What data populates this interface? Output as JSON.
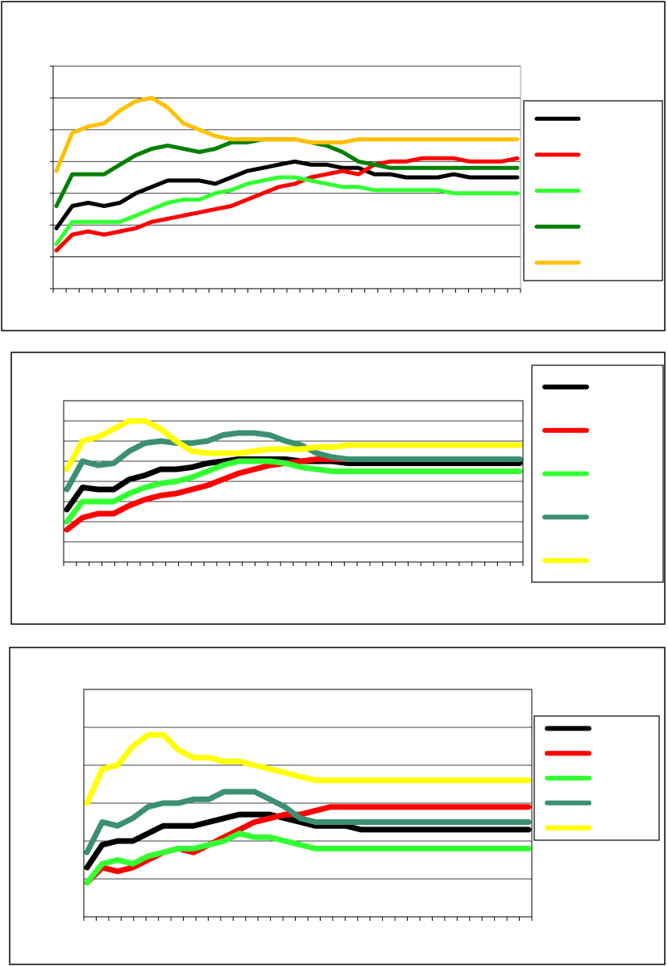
{
  "chart_data": [
    {
      "type": "line",
      "title": "",
      "xlabel": "",
      "ylabel": "",
      "x": [
        0,
        1,
        2,
        3,
        4,
        5,
        6,
        7,
        8,
        9,
        10,
        11,
        12,
        13,
        14,
        15,
        16,
        17,
        18,
        19,
        20,
        21,
        22,
        23,
        24,
        25,
        26,
        27,
        28,
        29
      ],
      "ylim": [
        0,
        7
      ],
      "grid": true,
      "legend": "right",
      "series": [
        {
          "color": "#000000",
          "values": [
            1.9,
            2.6,
            2.7,
            2.6,
            2.7,
            3.0,
            3.2,
            3.4,
            3.4,
            3.4,
            3.3,
            3.5,
            3.7,
            3.8,
            3.9,
            4.0,
            3.9,
            3.9,
            3.8,
            3.8,
            3.6,
            3.6,
            3.5,
            3.5,
            3.5,
            3.6,
            3.5,
            3.5,
            3.5,
            3.5
          ]
        },
        {
          "color": "#ff0000",
          "values": [
            1.2,
            1.7,
            1.8,
            1.7,
            1.8,
            1.9,
            2.1,
            2.2,
            2.3,
            2.4,
            2.5,
            2.6,
            2.8,
            3.0,
            3.2,
            3.3,
            3.5,
            3.6,
            3.7,
            3.6,
            3.9,
            4.0,
            4.0,
            4.1,
            4.1,
            4.1,
            4.0,
            4.0,
            4.0,
            4.1
          ]
        },
        {
          "color": "#33ff33",
          "values": [
            1.4,
            2.1,
            2.1,
            2.1,
            2.1,
            2.3,
            2.5,
            2.7,
            2.8,
            2.8,
            3.0,
            3.1,
            3.3,
            3.4,
            3.5,
            3.5,
            3.4,
            3.3,
            3.2,
            3.2,
            3.1,
            3.1,
            3.1,
            3.1,
            3.1,
            3.0,
            3.0,
            3.0,
            3.0,
            3.0
          ]
        },
        {
          "color": "#008000",
          "values": [
            2.6,
            3.6,
            3.6,
            3.6,
            3.9,
            4.2,
            4.4,
            4.5,
            4.4,
            4.3,
            4.4,
            4.6,
            4.6,
            4.7,
            4.7,
            4.7,
            4.6,
            4.5,
            4.3,
            4.0,
            3.9,
            3.8,
            3.8,
            3.8,
            3.8,
            3.8,
            3.8,
            3.8,
            3.8,
            3.8
          ]
        },
        {
          "color": "#ffc000",
          "values": [
            3.7,
            4.9,
            5.1,
            5.2,
            5.6,
            5.9,
            6.0,
            5.7,
            5.2,
            5.0,
            4.8,
            4.7,
            4.7,
            4.7,
            4.7,
            4.7,
            4.6,
            4.6,
            4.6,
            4.7,
            4.7,
            4.7,
            4.7,
            4.7,
            4.7,
            4.7,
            4.7,
            4.7,
            4.7,
            4.7
          ]
        }
      ]
    },
    {
      "type": "line",
      "title": "",
      "xlabel": "",
      "ylabel": "",
      "x": [
        0,
        1,
        2,
        3,
        4,
        5,
        6,
        7,
        8,
        9,
        10,
        11,
        12,
        13,
        14,
        15,
        16,
        17,
        18,
        19,
        20,
        21,
        22,
        23,
        24,
        25,
        26,
        27,
        28,
        29
      ],
      "ylim": [
        0,
        8
      ],
      "grid": true,
      "legend": "right",
      "series": [
        {
          "color": "#000000",
          "values": [
            2.6,
            3.7,
            3.6,
            3.6,
            4.1,
            4.3,
            4.6,
            4.6,
            4.7,
            4.9,
            5.0,
            5.1,
            5.1,
            5.1,
            5.1,
            5.0,
            5.0,
            5.0,
            4.9,
            4.9,
            4.9,
            4.9,
            4.9,
            4.9,
            4.9,
            4.9,
            4.9,
            4.9,
            4.9,
            4.9
          ]
        },
        {
          "color": "#ff0000",
          "values": [
            1.6,
            2.2,
            2.4,
            2.4,
            2.8,
            3.1,
            3.3,
            3.4,
            3.6,
            3.8,
            4.1,
            4.4,
            4.6,
            4.8,
            4.9,
            5.0,
            5.1,
            5.1,
            5.1,
            5.1,
            5.1,
            5.1,
            5.1,
            5.1,
            5.1,
            5.1,
            5.1,
            5.1,
            5.1,
            5.1
          ]
        },
        {
          "color": "#33ff33",
          "values": [
            2.0,
            3.0,
            3.0,
            3.0,
            3.4,
            3.7,
            3.9,
            4.0,
            4.2,
            4.5,
            4.8,
            5.0,
            5.0,
            5.0,
            4.9,
            4.7,
            4.6,
            4.5,
            4.5,
            4.5,
            4.5,
            4.5,
            4.5,
            4.5,
            4.5,
            4.5,
            4.5,
            4.5,
            4.5,
            4.5
          ]
        },
        {
          "color": "#3c9070",
          "values": [
            3.6,
            5.0,
            4.8,
            4.9,
            5.5,
            5.9,
            6.0,
            5.9,
            5.9,
            6.0,
            6.3,
            6.4,
            6.4,
            6.3,
            6.0,
            5.8,
            5.4,
            5.2,
            5.1,
            5.1,
            5.1,
            5.1,
            5.1,
            5.1,
            5.1,
            5.1,
            5.1,
            5.1,
            5.1,
            5.1
          ]
        },
        {
          "color": "#ffff00",
          "values": [
            4.6,
            6.0,
            6.2,
            6.6,
            7.0,
            7.0,
            6.6,
            6.0,
            5.5,
            5.4,
            5.4,
            5.4,
            5.5,
            5.6,
            5.6,
            5.6,
            5.7,
            5.7,
            5.8,
            5.8,
            5.8,
            5.8,
            5.8,
            5.8,
            5.8,
            5.8,
            5.8,
            5.8,
            5.8,
            5.8
          ]
        }
      ]
    },
    {
      "type": "line",
      "title": "",
      "xlabel": "",
      "ylabel": "",
      "x": [
        0,
        1,
        2,
        3,
        4,
        5,
        6,
        7,
        8,
        9,
        10,
        11,
        12,
        13,
        14,
        15,
        16,
        17,
        18,
        19,
        20,
        21,
        22,
        23,
        24,
        25,
        26,
        27,
        28,
        29
      ],
      "ylim": [
        0,
        6
      ],
      "grid": true,
      "legend": "right",
      "series": [
        {
          "color": "#000000",
          "values": [
            1.3,
            1.9,
            2.0,
            2.0,
            2.2,
            2.4,
            2.4,
            2.4,
            2.5,
            2.6,
            2.7,
            2.7,
            2.7,
            2.6,
            2.5,
            2.4,
            2.4,
            2.4,
            2.3,
            2.3,
            2.3,
            2.3,
            2.3,
            2.3,
            2.3,
            2.3,
            2.3,
            2.3,
            2.3,
            2.3
          ]
        },
        {
          "color": "#ff0000",
          "values": [
            0.9,
            1.3,
            1.2,
            1.3,
            1.5,
            1.7,
            1.8,
            1.7,
            1.9,
            2.1,
            2.3,
            2.5,
            2.6,
            2.7,
            2.7,
            2.8,
            2.9,
            2.9,
            2.9,
            2.9,
            2.9,
            2.9,
            2.9,
            2.9,
            2.9,
            2.9,
            2.9,
            2.9,
            2.9,
            2.9
          ]
        },
        {
          "color": "#33ff33",
          "values": [
            0.9,
            1.4,
            1.5,
            1.4,
            1.6,
            1.7,
            1.8,
            1.8,
            1.9,
            2.0,
            2.2,
            2.1,
            2.1,
            2.0,
            1.9,
            1.8,
            1.8,
            1.8,
            1.8,
            1.8,
            1.8,
            1.8,
            1.8,
            1.8,
            1.8,
            1.8,
            1.8,
            1.8,
            1.8,
            1.8
          ]
        },
        {
          "color": "#3c9070",
          "values": [
            1.7,
            2.5,
            2.4,
            2.6,
            2.9,
            3.0,
            3.0,
            3.1,
            3.1,
            3.3,
            3.3,
            3.3,
            3.1,
            2.9,
            2.6,
            2.5,
            2.5,
            2.5,
            2.5,
            2.5,
            2.5,
            2.5,
            2.5,
            2.5,
            2.5,
            2.5,
            2.5,
            2.5,
            2.5,
            2.5
          ]
        },
        {
          "color": "#ffff00",
          "values": [
            3.0,
            3.9,
            4.0,
            4.5,
            4.8,
            4.8,
            4.4,
            4.2,
            4.2,
            4.1,
            4.1,
            4.0,
            3.9,
            3.8,
            3.7,
            3.6,
            3.6,
            3.6,
            3.6,
            3.6,
            3.6,
            3.6,
            3.6,
            3.6,
            3.6,
            3.6,
            3.6,
            3.6,
            3.6,
            3.6
          ]
        }
      ]
    }
  ]
}
